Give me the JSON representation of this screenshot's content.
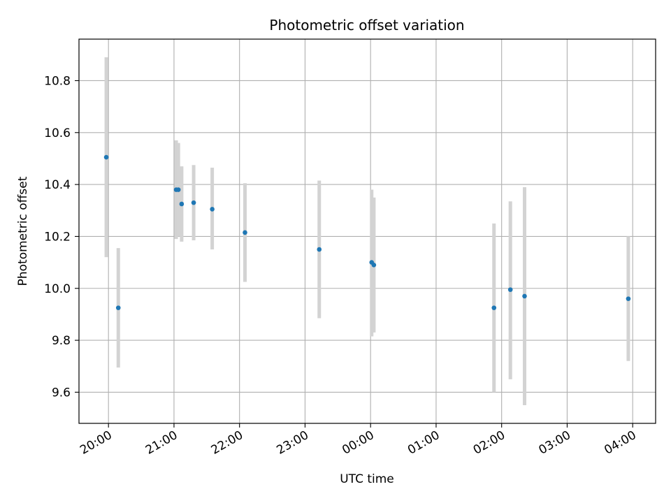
{
  "chart_data": {
    "type": "scatter",
    "title": "Photometric offset variation",
    "xlabel": "UTC time",
    "ylabel": "Photometric offset",
    "x_tick_labels": [
      "20:00",
      "21:00",
      "22:00",
      "23:00",
      "00:00",
      "01:00",
      "02:00",
      "03:00",
      "04:00"
    ],
    "x_ticks_hours": [
      20,
      21,
      22,
      23,
      24,
      25,
      26,
      27,
      28
    ],
    "x_range_hours": [
      19.55,
      28.35
    ],
    "y_ticks": [
      9.6,
      9.8,
      10.0,
      10.2,
      10.4,
      10.6,
      10.8
    ],
    "ylim": [
      9.48,
      10.96
    ],
    "grid": true,
    "colors": {
      "point": "#1f77b4",
      "errorbar": "#d3d3d3",
      "grid": "#b0b0b0"
    },
    "points": [
      {
        "time": "19:58",
        "y": 10.505,
        "err_low": 10.12,
        "err_high": 10.89
      },
      {
        "time": "20:09",
        "y": 9.925,
        "err_low": 9.695,
        "err_high": 10.155
      },
      {
        "time": "21:02",
        "y": 10.38,
        "err_low": 10.19,
        "err_high": 10.57
      },
      {
        "time": "21:04",
        "y": 10.38,
        "err_low": 10.2,
        "err_high": 10.56
      },
      {
        "time": "21:07",
        "y": 10.325,
        "err_low": 10.18,
        "err_high": 10.47
      },
      {
        "time": "21:18",
        "y": 10.33,
        "err_low": 10.185,
        "err_high": 10.475
      },
      {
        "time": "21:35",
        "y": 10.305,
        "err_low": 10.15,
        "err_high": 10.465
      },
      {
        "time": "22:05",
        "y": 10.215,
        "err_low": 10.025,
        "err_high": 10.405
      },
      {
        "time": "23:13",
        "y": 10.15,
        "err_low": 9.885,
        "err_high": 10.415
      },
      {
        "time": "00:01",
        "y": 10.1,
        "err_low": 9.815,
        "err_high": 10.38
      },
      {
        "time": "00:03",
        "y": 10.09,
        "err_low": 9.83,
        "err_high": 10.35
      },
      {
        "time": "01:53",
        "y": 9.925,
        "err_low": 9.6,
        "err_high": 10.25
      },
      {
        "time": "02:08",
        "y": 9.995,
        "err_low": 9.65,
        "err_high": 10.335
      },
      {
        "time": "02:21",
        "y": 9.97,
        "err_low": 9.55,
        "err_high": 10.39
      },
      {
        "time": "03:56",
        "y": 9.96,
        "err_low": 9.72,
        "err_high": 10.2
      }
    ]
  }
}
